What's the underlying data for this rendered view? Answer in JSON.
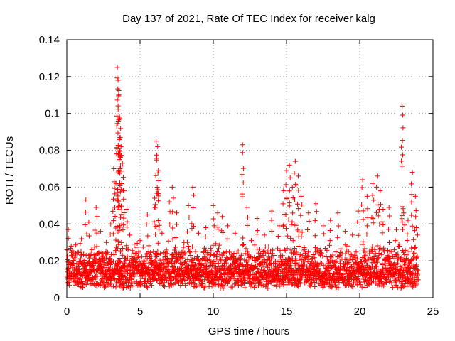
{
  "chart_data": {
    "type": "scatter",
    "title": "Day 137 of 2021, Rate Of TEC Index for receiver kalg",
    "xlabel": "GPS time / hours",
    "ylabel": "ROTI / TECUs",
    "xlim": [
      0,
      25
    ],
    "ylim": [
      0,
      0.14
    ],
    "x_ticks": [
      0,
      5,
      10,
      15,
      20,
      25
    ],
    "x_tick_labels": [
      "0",
      "5",
      "10",
      "15",
      "20",
      "25"
    ],
    "y_ticks": [
      0,
      0.02,
      0.04,
      0.06,
      0.08,
      0.1,
      0.12,
      0.14
    ],
    "y_tick_labels": [
      "0",
      "0.02",
      "0.04",
      "0.06",
      "0.08",
      "0.1",
      "0.12",
      "0.14"
    ],
    "grid": true,
    "marker": "+",
    "color": "#ff0000",
    "series": [
      {
        "name": "ROTI",
        "x": [
          0.1,
          0.3,
          0.6,
          1.0,
          1.3,
          1.5,
          1.7,
          2.0,
          2.3,
          2.7,
          3.0,
          3.2,
          3.35,
          3.45,
          3.5,
          3.55,
          3.6,
          3.65,
          3.7,
          3.8,
          3.9,
          4.1,
          4.3,
          4.6,
          5.0,
          5.5,
          6.0,
          6.1,
          6.2,
          6.25,
          6.5,
          7.0,
          7.2,
          7.5,
          8.0,
          8.3,
          8.6,
          9.0,
          9.5,
          10.0,
          10.3,
          10.6,
          11.0,
          11.5,
          12.0,
          12.3,
          12.6,
          13.0,
          13.5,
          14.0,
          14.5,
          14.8,
          15.0,
          15.2,
          15.4,
          15.6,
          15.8,
          16.0,
          16.5,
          17.0,
          17.5,
          18.0,
          18.5,
          19.0,
          19.5,
          19.9,
          20.2,
          20.5,
          20.9,
          21.2,
          21.4,
          21.6,
          22.0,
          22.5,
          22.9,
          23.0,
          23.3,
          23.6,
          23.8,
          23.95
        ],
        "y": [
          0.037,
          0.028,
          0.024,
          0.032,
          0.053,
          0.041,
          0.026,
          0.049,
          0.036,
          0.03,
          0.04,
          0.07,
          0.062,
          0.125,
          0.118,
          0.11,
          0.098,
          0.087,
          0.082,
          0.073,
          0.058,
          0.048,
          0.034,
          0.029,
          0.031,
          0.045,
          0.054,
          0.085,
          0.082,
          0.069,
          0.035,
          0.052,
          0.06,
          0.046,
          0.03,
          0.05,
          0.06,
          0.035,
          0.038,
          0.05,
          0.046,
          0.044,
          0.039,
          0.035,
          0.083,
          0.049,
          0.031,
          0.043,
          0.034,
          0.047,
          0.039,
          0.058,
          0.069,
          0.072,
          0.06,
          0.074,
          0.066,
          0.055,
          0.046,
          0.051,
          0.039,
          0.042,
          0.046,
          0.036,
          0.034,
          0.047,
          0.064,
          0.055,
          0.062,
          0.066,
          0.058,
          0.048,
          0.049,
          0.037,
          0.104,
          0.046,
          0.042,
          0.068,
          0.055,
          0.034
        ]
      }
    ],
    "background_band": {
      "description": "dense cluster of points filling roughly this value range across the full time span",
      "x_range": [
        0,
        24
      ],
      "y_range": [
        0.005,
        0.03
      ]
    }
  }
}
